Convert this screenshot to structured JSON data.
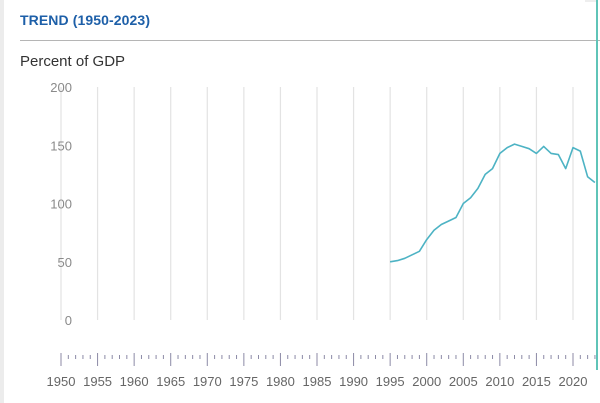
{
  "panel": {
    "title": "TREND (1950-2023)",
    "unit_label": "Percent of GDP"
  },
  "colors": {
    "title": "#1d5fa8",
    "line": "#4db3c4",
    "gridline": "#e3e3e3",
    "timeline_tick": "#8c8aa6",
    "cursor": "#5fc4b8"
  },
  "chart_data": {
    "type": "line",
    "title": "TREND (1950-2023)",
    "xlabel": "",
    "ylabel": "Percent of GDP",
    "xlim": [
      1950,
      2023
    ],
    "ylim": [
      0,
      200
    ],
    "y_ticks": [
      0,
      50,
      100,
      150,
      200
    ],
    "x_ticks": [
      1950,
      1955,
      1960,
      1965,
      1970,
      1975,
      1980,
      1985,
      1990,
      1995,
      2000,
      2005,
      2010,
      2015,
      2020
    ],
    "grid": "vertical",
    "legend": "none",
    "series": [
      {
        "name": "Percent of GDP",
        "x": [
          1995,
          1996,
          1997,
          1998,
          1999,
          2000,
          2001,
          2002,
          2003,
          2004,
          2005,
          2006,
          2007,
          2008,
          2009,
          2010,
          2011,
          2012,
          2013,
          2014,
          2015,
          2016,
          2017,
          2018,
          2019,
          2020,
          2021,
          2022,
          2023
        ],
        "values": [
          50,
          51,
          53,
          56,
          59,
          69,
          77,
          82,
          85,
          88,
          100,
          105,
          113,
          125,
          130,
          143,
          148,
          151,
          149,
          147,
          143,
          149,
          143,
          142,
          130,
          148,
          145,
          123,
          118
        ]
      }
    ]
  }
}
